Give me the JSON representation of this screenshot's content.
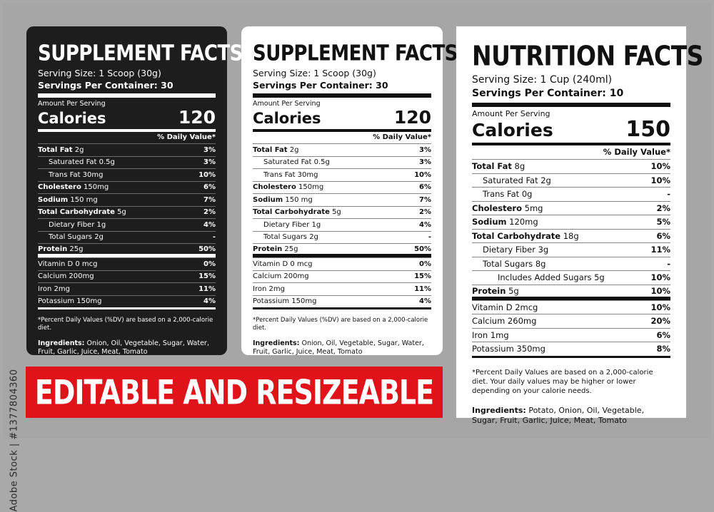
{
  "watermark": "Adobe Stock | #1377804360",
  "banner": "EDITABLE AND RESIZEABLE",
  "labels": [
    {
      "title": "SUPPLEMENT FACTS",
      "serving_size": "Serving Size: 1 Scoop (30g)",
      "servings_per_container": "Servings Per Container: 30",
      "amount_per_serving": "Amount Per Serving",
      "calories_label": "Calories",
      "calories_value": "120",
      "dv_header": "% Daily Value*",
      "rows": [
        {
          "name": "Total Fat",
          "amount": " 2g",
          "pct": "3%",
          "bold": true,
          "indent": 0
        },
        {
          "name": "Saturated Fat 0.5g",
          "amount": "",
          "pct": "3%",
          "bold": false,
          "indent": 1
        },
        {
          "name": "Trans Fat 30mg",
          "amount": "",
          "pct": "10%",
          "bold": false,
          "indent": 1
        },
        {
          "name": "Cholestero",
          "amount": " 150mg",
          "pct": "6%",
          "bold": true,
          "indent": 0
        },
        {
          "name": "Sodium",
          "amount": " 150 mg",
          "pct": "7%",
          "bold": true,
          "indent": 0
        },
        {
          "name": "Total Carbohydrate",
          "amount": " 5g",
          "pct": "2%",
          "bold": true,
          "indent": 0
        },
        {
          "name": "Dietary Fiber 1g",
          "amount": "",
          "pct": "4%",
          "bold": false,
          "indent": 1
        },
        {
          "name": "Total Sugars 2g",
          "amount": "",
          "pct": "-",
          "bold": false,
          "indent": 1
        },
        {
          "name": "Protein",
          "amount": " 25g",
          "pct": "50%",
          "bold": true,
          "indent": 0,
          "sep": true
        },
        {
          "name": "Vitamin D 0 mcg",
          "amount": "",
          "pct": "0%",
          "bold": false,
          "indent": 0
        },
        {
          "name": "Calcium 200mg",
          "amount": "",
          "pct": "15%",
          "bold": false,
          "indent": 0
        },
        {
          "name": "Iron 2mg",
          "amount": "",
          "pct": "11%",
          "bold": false,
          "indent": 0
        },
        {
          "name": "Potassium 150mg",
          "amount": "",
          "pct": "4%",
          "bold": false,
          "indent": 0
        }
      ],
      "footnote": "*Percent Daily Values (%DV) are based on a 2,000-calorie diet.",
      "ingredients_label": "Ingredients:",
      "ingredients": " Onion, Oil, Vegetable, Sugar, Water, Fruit, Garlic, Juice, Meat, Tomato"
    },
    {
      "title": "SUPPLEMENT FACTS",
      "serving_size": "Serving Size: 1 Scoop (30g)",
      "servings_per_container": "Servings Per Container: 30",
      "amount_per_serving": "Amount Per Serving",
      "calories_label": "Calories",
      "calories_value": "120",
      "dv_header": "% Daily Value*",
      "rows": [
        {
          "name": "Total Fat",
          "amount": " 2g",
          "pct": "3%",
          "bold": true,
          "indent": 0
        },
        {
          "name": "Saturated Fat 0.5g",
          "amount": "",
          "pct": "3%",
          "bold": false,
          "indent": 1
        },
        {
          "name": "Trans Fat 30mg",
          "amount": "",
          "pct": "10%",
          "bold": false,
          "indent": 1
        },
        {
          "name": "Cholestero",
          "amount": " 150mg",
          "pct": "6%",
          "bold": true,
          "indent": 0
        },
        {
          "name": "Sodium",
          "amount": " 150 mg",
          "pct": "7%",
          "bold": true,
          "indent": 0
        },
        {
          "name": "Total Carbohydrate",
          "amount": " 5g",
          "pct": "2%",
          "bold": true,
          "indent": 0
        },
        {
          "name": "Dietary Fiber 1g",
          "amount": "",
          "pct": "4%",
          "bold": false,
          "indent": 1
        },
        {
          "name": "Total Sugars 2g",
          "amount": "",
          "pct": "-",
          "bold": false,
          "indent": 1
        },
        {
          "name": "Protein",
          "amount": " 25g",
          "pct": "50%",
          "bold": true,
          "indent": 0,
          "sep": true
        },
        {
          "name": "Vitamin D 0 mcg",
          "amount": "",
          "pct": "0%",
          "bold": false,
          "indent": 0
        },
        {
          "name": "Calcium 200mg",
          "amount": "",
          "pct": "15%",
          "bold": false,
          "indent": 0
        },
        {
          "name": "Iron 2mg",
          "amount": "",
          "pct": "11%",
          "bold": false,
          "indent": 0
        },
        {
          "name": "Potassium 150mg",
          "amount": "",
          "pct": "4%",
          "bold": false,
          "indent": 0
        }
      ],
      "footnote": "*Percent Daily Values (%DV) are based on a 2,000-calorie diet.",
      "ingredients_label": "Ingredients:",
      "ingredients": " Onion, Oil, Vegetable, Sugar, Water, Fruit, Garlic, Juice, Meat, Tomato"
    },
    {
      "title": "NUTRITION FACTS",
      "serving_size": "Serving Size: 1 Cup (240ml)",
      "servings_per_container": "Servings Per Container: 10",
      "amount_per_serving": "Amount Per Serving",
      "calories_label": "Calories",
      "calories_value": "150",
      "dv_header": "% Daily Value*",
      "rows": [
        {
          "name": "Total Fat",
          "amount": " 8g",
          "pct": "10%",
          "bold": true,
          "indent": 0
        },
        {
          "name": "Saturated Fat 2g",
          "amount": "",
          "pct": "10%",
          "bold": false,
          "indent": 1
        },
        {
          "name": "Trans Fat 0g",
          "amount": "",
          "pct": "-",
          "bold": false,
          "indent": 1
        },
        {
          "name": "Cholestero",
          "amount": " 5mg",
          "pct": "2%",
          "bold": true,
          "indent": 0
        },
        {
          "name": "Sodium",
          "amount": " 120mg",
          "pct": "5%",
          "bold": true,
          "indent": 0
        },
        {
          "name": "Total Carbohydrate",
          "amount": " 18g",
          "pct": "6%",
          "bold": true,
          "indent": 0
        },
        {
          "name": "Dietary Fiber 3g",
          "amount": "",
          "pct": "11%",
          "bold": false,
          "indent": 1
        },
        {
          "name": "Total Sugars 8g",
          "amount": "",
          "pct": "-",
          "bold": false,
          "indent": 1
        },
        {
          "name": "Includes Added Sugars 5g",
          "amount": "",
          "pct": "10%",
          "bold": false,
          "indent": 2
        },
        {
          "name": "Protein",
          "amount": " 5g",
          "pct": "10%",
          "bold": true,
          "indent": 0,
          "sep": true
        },
        {
          "name": "Vitamin D 2mcg",
          "amount": "",
          "pct": "10%",
          "bold": false,
          "indent": 0
        },
        {
          "name": "Calcium 260mg",
          "amount": "",
          "pct": "20%",
          "bold": false,
          "indent": 0
        },
        {
          "name": "Iron 1mg",
          "amount": "",
          "pct": "6%",
          "bold": false,
          "indent": 0
        },
        {
          "name": "Potassium 350mg",
          "amount": "",
          "pct": "8%",
          "bold": false,
          "indent": 0
        }
      ],
      "footnote": "*Percent Daily Values are based on a 2,000-calorie diet. Your daily values may be higher or lower depending on your calorie needs.",
      "ingredients_label": "Ingredients:",
      "ingredients": " Potato, Onion, Oil, Vegetable, Sugar, Fruit, Garlic, Juice, Meat, Tomato"
    }
  ]
}
